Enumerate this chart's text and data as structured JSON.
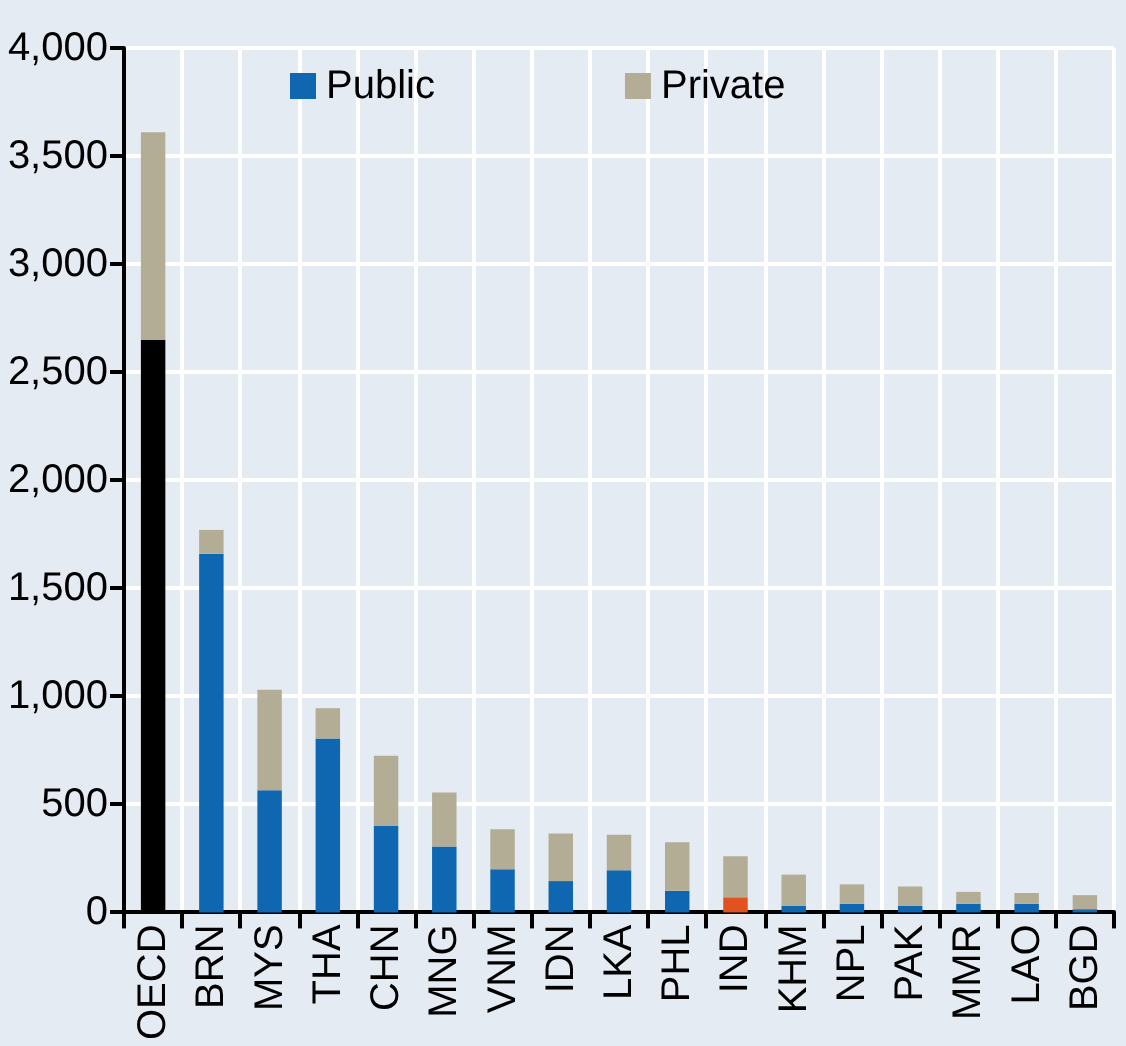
{
  "chart_data": {
    "type": "bar",
    "stacked": true,
    "categories": [
      "OECD",
      "BRN",
      "MYS",
      "THA",
      "CHN",
      "MNG",
      "VNM",
      "IDN",
      "LKA",
      "PHL",
      "IND",
      "KHM",
      "NPL",
      "PAK",
      "MMR",
      "LAO",
      "BGD"
    ],
    "series": [
      {
        "name": "Public",
        "color": "#0e67b0",
        "colors": [
          "#000000",
          "#0e67b0",
          "#0e67b0",
          "#0e67b0",
          "#0e67b0",
          "#0e67b0",
          "#0e67b0",
          "#0e67b0",
          "#0e67b0",
          "#0e67b0",
          "#e0521e",
          "#0e67b0",
          "#0e67b0",
          "#0e67b0",
          "#0e67b0",
          "#0e67b0",
          "#0e67b0"
        ],
        "values": [
          2650,
          1660,
          565,
          805,
          400,
          305,
          200,
          145,
          195,
          100,
          70,
          30,
          40,
          30,
          40,
          40,
          15
        ]
      },
      {
        "name": "Private",
        "color": "#b3ad95",
        "values": [
          960,
          110,
          465,
          140,
          325,
          250,
          185,
          220,
          165,
          225,
          190,
          145,
          90,
          90,
          55,
          50,
          65
        ]
      }
    ],
    "ylim": [
      0,
      4000
    ],
    "yticks": [
      {
        "value": 0,
        "label": "0"
      },
      {
        "value": 500,
        "label": "500"
      },
      {
        "value": 1000,
        "label": "1,000"
      },
      {
        "value": 1500,
        "label": "1,500"
      },
      {
        "value": 2000,
        "label": "2,000"
      },
      {
        "value": 2500,
        "label": "2,500"
      },
      {
        "value": 3000,
        "label": "3,000"
      },
      {
        "value": 3500,
        "label": "3,500"
      },
      {
        "value": 4000,
        "label": "4,000"
      }
    ],
    "grid": true,
    "legend": "top"
  }
}
